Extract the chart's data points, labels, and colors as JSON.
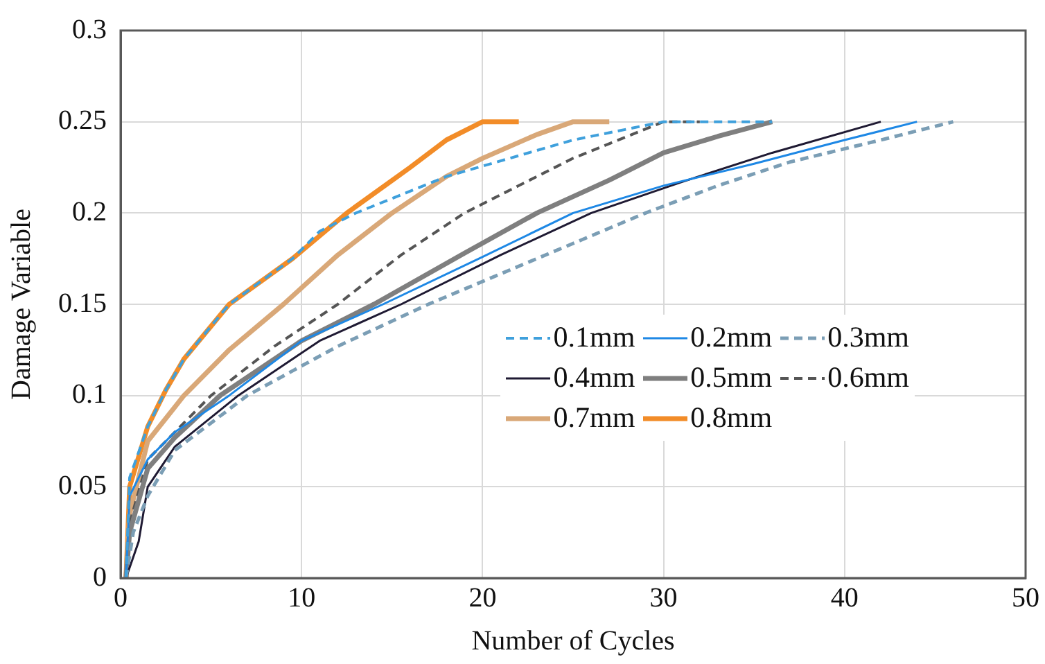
{
  "chart_data": {
    "type": "line",
    "xlabel": "Number of Cycles",
    "ylabel": "Damage Variable",
    "xlim": [
      0,
      50
    ],
    "xticks": [
      0,
      10,
      20,
      30,
      40,
      50
    ],
    "ylim": [
      0,
      0.3
    ],
    "yticks": [
      0,
      0.05,
      0.1,
      0.15,
      0.2,
      0.25,
      0.3
    ],
    "grid": true,
    "legend": "right",
    "marker": "none",
    "series": [
      {
        "name": "0.1mm",
        "color": "#3fa0dc",
        "line_style": "dashed",
        "x": [
          0.3,
          0.5,
          1.5,
          2.5,
          3.5,
          6,
          9.5,
          11,
          13,
          18,
          25,
          30,
          36
        ],
        "values": [
          0,
          0.055,
          0.083,
          0.103,
          0.12,
          0.15,
          0.175,
          0.19,
          0.2,
          0.22,
          0.24,
          0.25,
          0.25
        ]
      },
      {
        "name": "0.2mm",
        "color": "#1e88e5",
        "line_style": "solid",
        "x": [
          0.3,
          0.5,
          1.5,
          3,
          6,
          10,
          14.5,
          20,
          25,
          30,
          35,
          40,
          44
        ],
        "values": [
          0,
          0.045,
          0.065,
          0.08,
          0.1,
          0.13,
          0.15,
          0.176,
          0.2,
          0.215,
          0.227,
          0.24,
          0.25
        ]
      },
      {
        "name": "0.3mm",
        "color": "#7b9eb5",
        "line_style": "dashed",
        "x": [
          0.3,
          0.7,
          1.5,
          3,
          7,
          12,
          17,
          23,
          29,
          33,
          37,
          42,
          46
        ],
        "values": [
          0,
          0.025,
          0.045,
          0.07,
          0.1,
          0.127,
          0.15,
          0.175,
          0.2,
          0.215,
          0.228,
          0.24,
          0.25
        ]
      },
      {
        "name": "0.4mm",
        "color": "#1f1a33",
        "line_style": "solid",
        "x": [
          0.3,
          1,
          1.5,
          3,
          6.5,
          11,
          15.5,
          21,
          26,
          31,
          36,
          42
        ],
        "values": [
          0,
          0.02,
          0.05,
          0.072,
          0.1,
          0.13,
          0.15,
          0.177,
          0.2,
          0.217,
          0.233,
          0.25
        ]
      },
      {
        "name": "0.5mm",
        "color": "#7f7f7f",
        "line_style": "solid",
        "x": [
          0.3,
          0.5,
          1.5,
          3,
          5.5,
          10,
          14,
          19,
          23,
          27,
          30,
          33,
          36
        ],
        "values": [
          0,
          0.025,
          0.06,
          0.077,
          0.1,
          0.13,
          0.15,
          0.178,
          0.2,
          0.218,
          0.233,
          0.242,
          0.25
        ]
      },
      {
        "name": "0.6mm",
        "color": "#555555",
        "line_style": "dashed",
        "x": [
          0.3,
          0.5,
          1.5,
          3,
          5,
          8.5,
          12,
          15.5,
          19,
          22,
          25,
          28,
          30,
          32
        ],
        "values": [
          0,
          0.03,
          0.065,
          0.08,
          0.1,
          0.127,
          0.15,
          0.177,
          0.2,
          0.215,
          0.23,
          0.242,
          0.25,
          0.25
        ]
      },
      {
        "name": "0.7mm",
        "color": "#d9a878",
        "line_style": "solid",
        "x": [
          0.3,
          0.5,
          1.5,
          3.5,
          6,
          9,
          12,
          15,
          18,
          20,
          23,
          25,
          27
        ],
        "values": [
          0,
          0.035,
          0.075,
          0.1,
          0.125,
          0.15,
          0.177,
          0.2,
          0.22,
          0.23,
          0.243,
          0.25,
          0.25
        ]
      },
      {
        "name": "0.8mm",
        "color": "#f28c28",
        "line_style": "solid",
        "x": [
          0.3,
          0.5,
          1.5,
          2.5,
          3.5,
          6,
          9.5,
          12.5,
          16,
          18,
          20,
          22
        ],
        "values": [
          0,
          0.05,
          0.083,
          0.103,
          0.12,
          0.15,
          0.175,
          0.2,
          0.225,
          0.24,
          0.25,
          0.25
        ]
      }
    ]
  }
}
